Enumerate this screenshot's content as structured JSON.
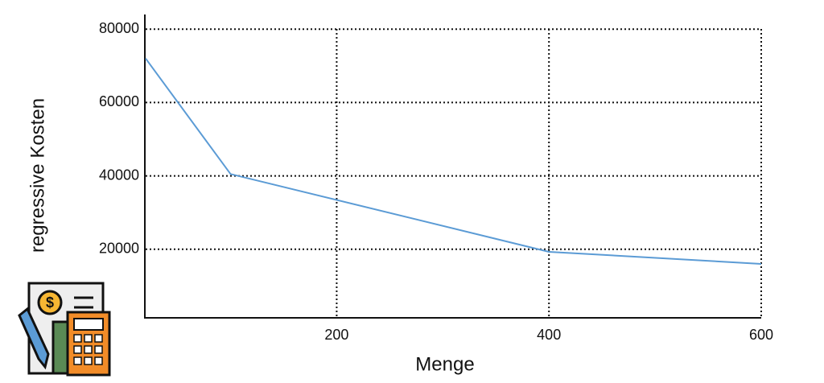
{
  "chart_data": {
    "type": "line",
    "xlabel": "Menge",
    "ylabel": "regressive Kosten",
    "x": [
      20,
      100,
      400,
      600
    ],
    "series": [
      {
        "name": "regressive Kosten",
        "color": "#5b9bd5",
        "values": [
          72000,
          40500,
          19300,
          16000
        ]
      }
    ],
    "xlim": [
      20,
      600
    ],
    "xticks": [
      200,
      400,
      600
    ],
    "ylim": [
      1300,
      84000
    ],
    "yticks": [
      20000,
      40000,
      60000,
      80000
    ],
    "grid": true
  }
}
